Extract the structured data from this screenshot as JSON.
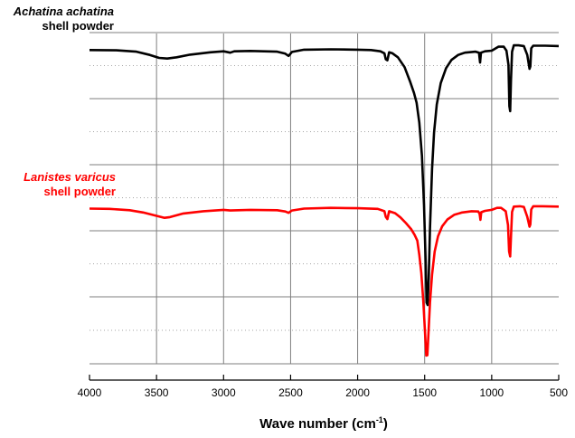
{
  "chart_data": {
    "type": "line",
    "xlabel": "Wave number (cm",
    "xlabel_sup": "-1",
    "xlabel_close": ")",
    "xlim": [
      4000,
      500
    ],
    "x_ticks": [
      4000,
      3500,
      3000,
      2500,
      2000,
      1500,
      1000,
      500
    ],
    "x_tick_labels": [
      "4000",
      "3500",
      "3000",
      "2500",
      "2000",
      "1500",
      "1000",
      "500"
    ],
    "y_axis": "transmittance (arbitrary units, not labeled)",
    "ylim": [
      0,
      100
    ],
    "grid": {
      "major_vertical": true,
      "major_horizontal": true,
      "minor_horizontal_dotted": true
    },
    "series": [
      {
        "name_species": "Achatina achatina",
        "name_rest": "shell powder",
        "color": "#000000",
        "points": [
          [
            4000,
            95.0
          ],
          [
            3800,
            94.9
          ],
          [
            3650,
            94.5
          ],
          [
            3550,
            93.5
          ],
          [
            3480,
            92.6
          ],
          [
            3420,
            92.4
          ],
          [
            3350,
            92.8
          ],
          [
            3250,
            93.6
          ],
          [
            3100,
            94.3
          ],
          [
            3000,
            94.6
          ],
          [
            2950,
            94.2
          ],
          [
            2920,
            94.6
          ],
          [
            2800,
            94.7
          ],
          [
            2600,
            94.5
          ],
          [
            2540,
            93.9
          ],
          [
            2515,
            93.2
          ],
          [
            2490,
            94.4
          ],
          [
            2400,
            95.1
          ],
          [
            2200,
            95.2
          ],
          [
            2000,
            95.1
          ],
          [
            1900,
            95.0
          ],
          [
            1830,
            94.6
          ],
          [
            1800,
            94.0
          ],
          [
            1790,
            92.2
          ],
          [
            1778,
            91.9
          ],
          [
            1765,
            94.3
          ],
          [
            1740,
            94.0
          ],
          [
            1700,
            92.8
          ],
          [
            1650,
            89.8
          ],
          [
            1610,
            85.6
          ],
          [
            1580,
            82.0
          ],
          [
            1560,
            79.0
          ],
          [
            1540,
            73.0
          ],
          [
            1520,
            63.0
          ],
          [
            1505,
            48.0
          ],
          [
            1492,
            30.0
          ],
          [
            1485,
            18.5
          ],
          [
            1478,
            17.8
          ],
          [
            1470,
            26.0
          ],
          [
            1460,
            41.0
          ],
          [
            1445,
            59.0
          ],
          [
            1430,
            70.0
          ],
          [
            1410,
            78.5
          ],
          [
            1380,
            85.0
          ],
          [
            1340,
            89.5
          ],
          [
            1300,
            92.0
          ],
          [
            1250,
            93.5
          ],
          [
            1200,
            94.2
          ],
          [
            1120,
            94.5
          ],
          [
            1095,
            94.2
          ],
          [
            1087,
            91.2
          ],
          [
            1080,
            94.2
          ],
          [
            1050,
            94.6
          ],
          [
            1000,
            94.8
          ],
          [
            950,
            96.0
          ],
          [
            910,
            96.0
          ],
          [
            890,
            94.8
          ],
          [
            875,
            90.5
          ],
          [
            868,
            78.0
          ],
          [
            862,
            76.5
          ],
          [
            856,
            86.0
          ],
          [
            848,
            94.5
          ],
          [
            835,
            96.4
          ],
          [
            800,
            96.4
          ],
          [
            760,
            96.2
          ],
          [
            735,
            93.5
          ],
          [
            718,
            89.3
          ],
          [
            712,
            90.0
          ],
          [
            705,
            95.5
          ],
          [
            690,
            96.3
          ],
          [
            640,
            96.3
          ],
          [
            600,
            96.3
          ],
          [
            500,
            96.2
          ]
        ]
      },
      {
        "name_species": "Lanistes varicus",
        "name_rest": "shell powder",
        "color": "#ff0000",
        "points": [
          [
            4000,
            47.0
          ],
          [
            3850,
            46.9
          ],
          [
            3700,
            46.5
          ],
          [
            3600,
            45.8
          ],
          [
            3500,
            44.8
          ],
          [
            3440,
            44.2
          ],
          [
            3400,
            44.4
          ],
          [
            3300,
            45.5
          ],
          [
            3150,
            46.2
          ],
          [
            3000,
            46.6
          ],
          [
            2950,
            46.4
          ],
          [
            2800,
            46.6
          ],
          [
            2600,
            46.5
          ],
          [
            2540,
            46.1
          ],
          [
            2515,
            45.7
          ],
          [
            2490,
            46.4
          ],
          [
            2400,
            47.0
          ],
          [
            2200,
            47.2
          ],
          [
            2000,
            47.1
          ],
          [
            1850,
            46.9
          ],
          [
            1800,
            46.2
          ],
          [
            1790,
            44.5
          ],
          [
            1778,
            43.8
          ],
          [
            1765,
            46.2
          ],
          [
            1720,
            45.6
          ],
          [
            1680,
            44.3
          ],
          [
            1640,
            42.6
          ],
          [
            1600,
            40.7
          ],
          [
            1575,
            39.0
          ],
          [
            1555,
            37.3
          ],
          [
            1540,
            33.0
          ],
          [
            1525,
            27.5
          ],
          [
            1510,
            19.0
          ],
          [
            1498,
            10.0
          ],
          [
            1488,
            2.5
          ],
          [
            1480,
            2.6
          ],
          [
            1472,
            9.0
          ],
          [
            1460,
            18.5
          ],
          [
            1445,
            27.0
          ],
          [
            1425,
            34.0
          ],
          [
            1400,
            38.6
          ],
          [
            1370,
            41.6
          ],
          [
            1330,
            43.7
          ],
          [
            1280,
            45.1
          ],
          [
            1220,
            45.8
          ],
          [
            1150,
            46.2
          ],
          [
            1100,
            46.1
          ],
          [
            1090,
            45.4
          ],
          [
            1084,
            43.6
          ],
          [
            1078,
            45.9
          ],
          [
            1050,
            46.3
          ],
          [
            1000,
            46.6
          ],
          [
            960,
            47.2
          ],
          [
            930,
            47.2
          ],
          [
            895,
            46.2
          ],
          [
            878,
            42.0
          ],
          [
            870,
            34.0
          ],
          [
            862,
            32.5
          ],
          [
            856,
            38.5
          ],
          [
            848,
            46.0
          ],
          [
            835,
            47.6
          ],
          [
            790,
            47.7
          ],
          [
            760,
            47.5
          ],
          [
            735,
            44.5
          ],
          [
            718,
            41.5
          ],
          [
            712,
            42.2
          ],
          [
            705,
            46.7
          ],
          [
            690,
            47.7
          ],
          [
            620,
            47.7
          ],
          [
            500,
            47.6
          ]
        ]
      }
    ]
  },
  "styles": {
    "axis_color": "#000000",
    "grid_color": "#7f7f7f",
    "minor_grid_color": "#a6a6a6"
  }
}
